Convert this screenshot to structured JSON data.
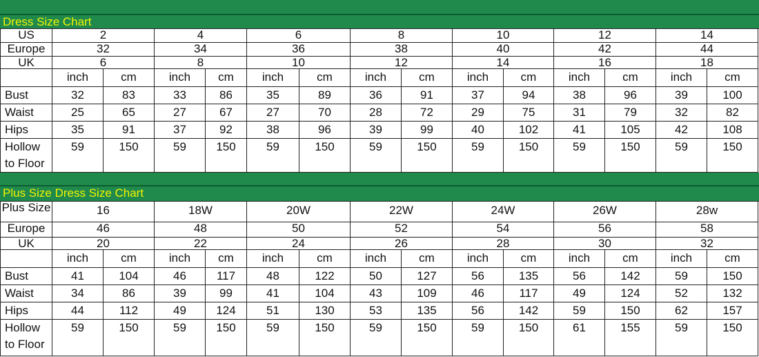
{
  "sections": [
    {
      "title": "Dress Size Chart",
      "size_rows": [
        {
          "label": "US",
          "values": [
            2,
            4,
            6,
            8,
            10,
            12,
            14
          ]
        },
        {
          "label": "Europe",
          "values": [
            32,
            34,
            36,
            38,
            40,
            42,
            44
          ]
        },
        {
          "label": "UK",
          "values": [
            6,
            8,
            10,
            12,
            14,
            16,
            18
          ]
        }
      ],
      "units": [
        "inch",
        "cm",
        "inch",
        "cm",
        "inch",
        "cm",
        "inch",
        "cm",
        "inch",
        "cm",
        "inch",
        "cm",
        "inch",
        "cm"
      ],
      "measure_rows": [
        {
          "label": "Bust",
          "values": [
            32,
            83,
            33,
            86,
            35,
            89,
            36,
            91,
            37,
            94,
            38,
            96,
            39,
            100
          ]
        },
        {
          "label": "Waist",
          "values": [
            25,
            65,
            27,
            67,
            27,
            70,
            28,
            72,
            29,
            75,
            31,
            79,
            32,
            82
          ]
        },
        {
          "label": "Hips",
          "values": [
            35,
            91,
            37,
            92,
            38,
            96,
            39,
            99,
            40,
            102,
            41,
            105,
            42,
            108
          ]
        },
        {
          "label": "Hollow to Floor",
          "values": [
            59,
            150,
            59,
            150,
            59,
            150,
            59,
            150,
            59,
            150,
            59,
            150,
            59,
            150
          ]
        }
      ]
    },
    {
      "title": "Plus Size Dress Size Chart",
      "size_rows": [
        {
          "label": "Plus Size",
          "values": [
            "16",
            "18W",
            "20W",
            "22W",
            "24W",
            "26W",
            "28w"
          ]
        },
        {
          "label": "Europe",
          "values": [
            46,
            48,
            50,
            52,
            54,
            56,
            58
          ]
        },
        {
          "label": "UK",
          "values": [
            20,
            22,
            24,
            26,
            28,
            30,
            32
          ]
        }
      ],
      "units": [
        "inch",
        "cm",
        "inch",
        "cm",
        "inch",
        "cm",
        "inch",
        "cm",
        "inch",
        "cm",
        "inch",
        "cm",
        "inch",
        "cm"
      ],
      "measure_rows": [
        {
          "label": "Bust",
          "values": [
            41,
            104,
            46,
            117,
            48,
            122,
            50,
            127,
            56,
            135,
            56,
            142,
            59,
            150
          ]
        },
        {
          "label": "Waist",
          "values": [
            34,
            86,
            39,
            99,
            41,
            104,
            43,
            109,
            46,
            117,
            49,
            124,
            52,
            132
          ]
        },
        {
          "label": "Hips",
          "values": [
            44,
            112,
            49,
            124,
            51,
            130,
            53,
            135,
            56,
            142,
            59,
            150,
            62,
            157
          ]
        },
        {
          "label": "Hollow to Floor",
          "values": [
            59,
            150,
            59,
            150,
            59,
            150,
            59,
            150,
            59,
            150,
            61,
            155,
            59,
            150
          ]
        }
      ]
    }
  ]
}
